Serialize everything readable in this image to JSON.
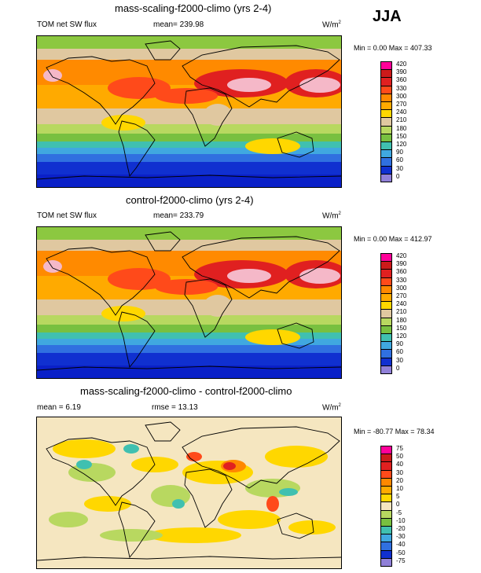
{
  "season": "JJA",
  "panels": [
    {
      "title": "mass-scaling-f2000-climo (yrs 2-4)",
      "left_label": "TOM net SW flux",
      "center_label": "mean= 239.98",
      "units": "W/m",
      "units_exp": "2",
      "minmax": "Min =   0.00 Max = 407.33"
    },
    {
      "title": "control-f2000-climo (yrs 2-4)",
      "left_label": "TOM net SW flux",
      "center_label": "mean= 233.79",
      "units": "W/m",
      "units_exp": "2",
      "minmax": "Min =   0.00 Max = 412.97"
    },
    {
      "title": "mass-scaling-f2000-climo - control-f2000-climo",
      "left_label": "mean =   6.19",
      "center_label": "rmse =  13.13",
      "units": "W/m",
      "units_exp": "2",
      "minmax": "Min = -80.77 Max = 78.34"
    }
  ],
  "chart_data": [
    {
      "type": "heatmap",
      "title": "mass-scaling-f2000-climo (yrs 2-4)",
      "variable": "TOM net SW flux",
      "mean": 239.98,
      "min": 0.0,
      "max": 407.33,
      "units": "W/m2",
      "colorbar_levels": [
        "420",
        "390",
        "360",
        "330",
        "300",
        "270",
        "240",
        "210",
        "180",
        "150",
        "120",
        "90",
        "60",
        "30",
        "0"
      ],
      "colorbar_colors": [
        "#ff0099",
        "#cc1a1a",
        "#e02020",
        "#ff4a1a",
        "#ff8800",
        "#ffaa00",
        "#ffd700",
        "#e0c8a0",
        "#b8d860",
        "#78c040",
        "#40c0b0",
        "#40a8e0",
        "#3070e0",
        "#1030d0",
        "#9080d8"
      ]
    },
    {
      "type": "heatmap",
      "title": "control-f2000-climo (yrs 2-4)",
      "variable": "TOM net SW flux",
      "mean": 233.79,
      "min": 0.0,
      "max": 412.97,
      "units": "W/m2",
      "colorbar_levels": [
        "420",
        "390",
        "360",
        "330",
        "300",
        "270",
        "240",
        "210",
        "180",
        "150",
        "120",
        "90",
        "60",
        "30",
        "0"
      ],
      "colorbar_colors": [
        "#ff0099",
        "#cc1a1a",
        "#e02020",
        "#ff4a1a",
        "#ff8800",
        "#ffaa00",
        "#ffd700",
        "#e0c8a0",
        "#b8d860",
        "#78c040",
        "#40c0b0",
        "#40a8e0",
        "#3070e0",
        "#1030d0",
        "#9080d8"
      ]
    },
    {
      "type": "heatmap",
      "title": "mass-scaling-f2000-climo - control-f2000-climo",
      "mean": 6.19,
      "rmse": 13.13,
      "min": -80.77,
      "max": 78.34,
      "units": "W/m2",
      "colorbar_levels": [
        "75",
        "50",
        "40",
        "30",
        "20",
        "10",
        "5",
        "0",
        "-5",
        "-10",
        "-20",
        "-30",
        "-40",
        "-50",
        "-75"
      ],
      "colorbar_colors": [
        "#ff0099",
        "#cc1a1a",
        "#e02020",
        "#ff4a1a",
        "#ff8800",
        "#ffaa00",
        "#ffd700",
        "#f5e6c0",
        "#b8d860",
        "#78c040",
        "#40c0b0",
        "#40a8e0",
        "#3070e0",
        "#1030d0",
        "#9080d8"
      ]
    }
  ]
}
